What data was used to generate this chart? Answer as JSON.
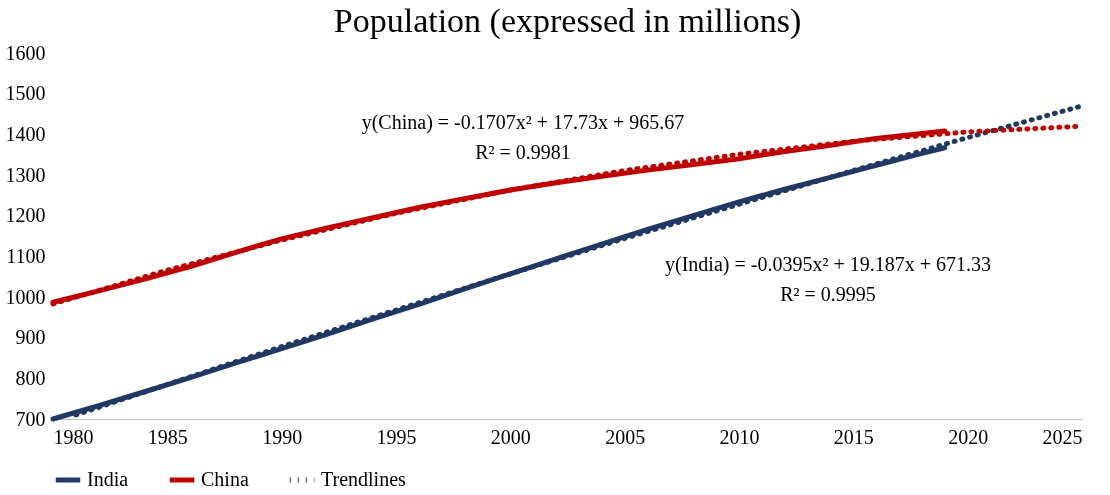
{
  "chart_data": {
    "type": "line",
    "title": "Population (expressed in millions)",
    "xlim": [
      1980,
      2025
    ],
    "xticks": [
      1980,
      1985,
      1990,
      1995,
      2000,
      2005,
      2010,
      2015,
      2020,
      2025
    ],
    "ylim": [
      700,
      1600
    ],
    "yticks": [
      700,
      800,
      900,
      1000,
      1100,
      1200,
      1300,
      1400,
      1500,
      1600
    ],
    "grid": false,
    "legend": "bottom",
    "line_style": "solid",
    "series": [
      {
        "name": "India",
        "color": "#1f3864",
        "x": [
          1980,
          1982,
          1984,
          1986,
          1988,
          1990,
          1992,
          1994,
          1996,
          1998,
          2000,
          2002,
          2004,
          2006,
          2008,
          2010,
          2012,
          2014,
          2016,
          2018,
          2019
        ],
        "values": [
          700,
          733,
          767,
          802,
          838,
          873,
          909,
          946,
          982,
          1020,
          1057,
          1094,
          1130,
          1166,
          1200,
          1234,
          1265,
          1294,
          1324,
          1353,
          1367
        ]
      },
      {
        "name": "China",
        "color": "#c00000",
        "x": [
          1980,
          1982,
          1984,
          1986,
          1988,
          1990,
          1992,
          1994,
          1996,
          1998,
          2000,
          2002,
          2004,
          2006,
          2008,
          2010,
          2012,
          2014,
          2016,
          2018,
          2019
        ],
        "values": [
          987,
          1015,
          1044,
          1075,
          1110,
          1143,
          1170,
          1195,
          1220,
          1242,
          1263,
          1281,
          1297,
          1312,
          1326,
          1340,
          1358,
          1373,
          1390,
          1402,
          1408
        ]
      },
      {
        "name": "Trendlines",
        "type": "line",
        "line_style": "dotted",
        "color": "#1f3864",
        "x": [
          1981,
          1985,
          1990,
          1995,
          2000,
          2005,
          2010,
          2015,
          2020,
          2025
        ],
        "values": [
          710,
          785,
          878,
          968,
          1057,
          1144,
          1228,
          1311,
          1392,
          1470
        ]
      },
      {
        "type": "line",
        "line_style": "dotted",
        "color": "#c00000",
        "x": [
          1980,
          1985,
          1990,
          1995,
          2000,
          2005,
          2010,
          2015,
          2020,
          2025
        ],
        "values": [
          983,
          1066,
          1140,
          1206,
          1263,
          1311,
          1351,
          1383,
          1406,
          1420
        ]
      }
    ],
    "annotations": [
      "y(China) = -0.1707x² + 17.73x + 965.67",
      "R² = 0.9981",
      "y(India) = -0.0395x² + 19.187x + 671.33",
      "R² = 0.9995"
    ]
  }
}
